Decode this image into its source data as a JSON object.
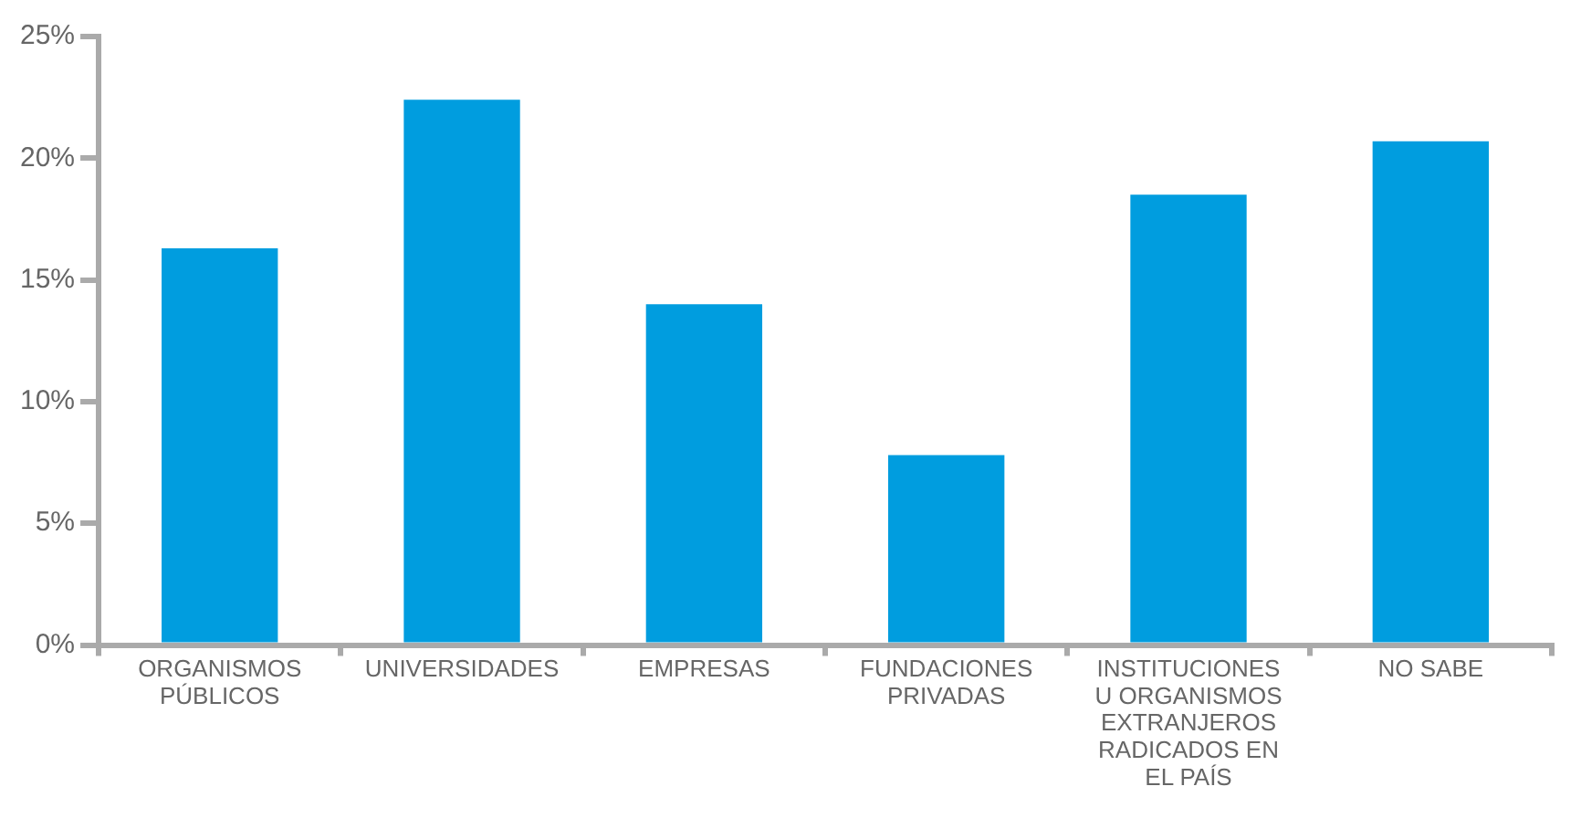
{
  "chart_data": {
    "type": "bar",
    "categories": [
      "ORGANISMOS PÚBLICOS",
      "UNIVERSIDADES",
      "EMPRESAS",
      "FUNDACIONES PRIVADAS",
      "INSTITUCIONES U ORGANISMOS EXTRANJEROS RADICADOS EN EL PAÍS",
      "NO SABE"
    ],
    "values": [
      16.3,
      22.4,
      14.0,
      7.8,
      18.5,
      20.7
    ],
    "color": "#009ddf",
    "ylim": [
      0,
      25
    ],
    "yticks": [
      {
        "value": 0,
        "label": "0%"
      },
      {
        "value": 5,
        "label": "5%"
      },
      {
        "value": 10,
        "label": "10%"
      },
      {
        "value": 15,
        "label": "15%"
      },
      {
        "value": 20,
        "label": "20%"
      },
      {
        "value": 25,
        "label": "25%"
      }
    ]
  }
}
